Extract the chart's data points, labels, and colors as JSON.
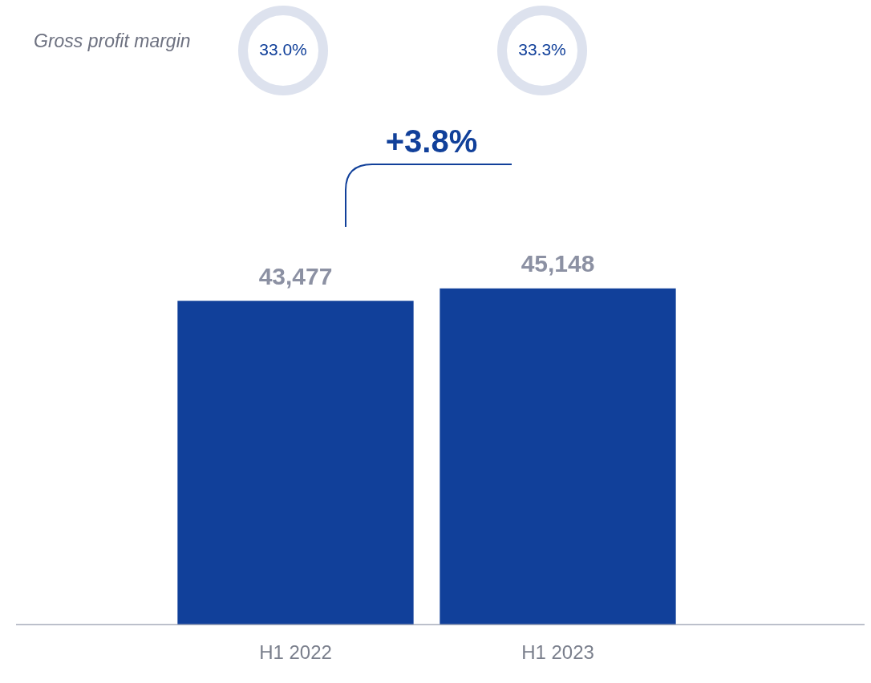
{
  "chart_data": {
    "type": "bar",
    "categories": [
      "H1 2022",
      "H1 2023"
    ],
    "values": [
      43477,
      45148
    ],
    "value_labels": [
      "43,477",
      "45,148"
    ],
    "color": "#11409a",
    "annotations": [
      "Gross profit margin",
      "33.0%",
      "33.3%",
      "+3.8%"
    ]
  }
}
